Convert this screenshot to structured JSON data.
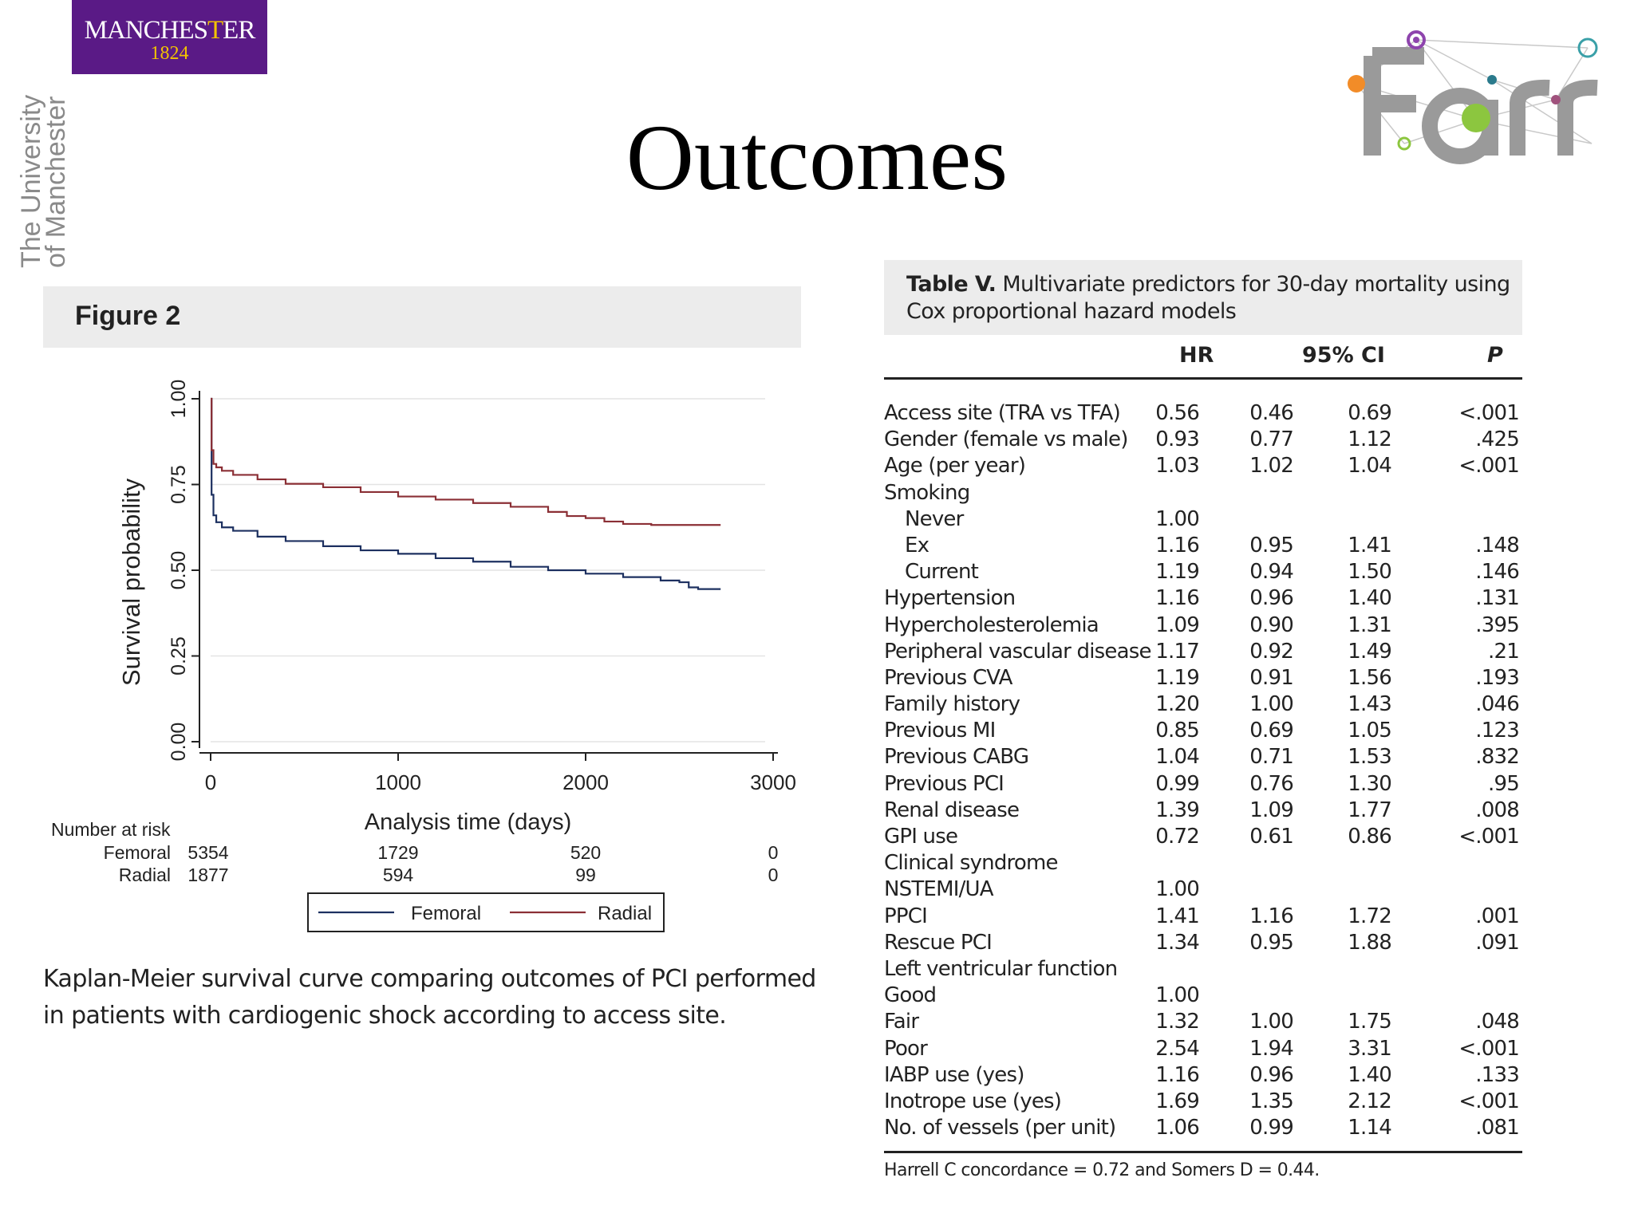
{
  "slide": {
    "title": "Outcomes"
  },
  "logos": {
    "uni_name_a": "MANCHES",
    "uni_name_b": "T",
    "uni_name_c": "ER",
    "uni_year": "1824",
    "uni_vertical_1": "The University",
    "uni_vertical_2": "of Manchester",
    "purple": "#5a1a86",
    "gold": "#f3c300",
    "farr_icon": "farr-institute-logo"
  },
  "figure": {
    "label": "Figure 2",
    "caption": "Kaplan-Meier survival curve comparing outcomes of PCI performed in patients with cardiogenic shock according to access site."
  },
  "chart_data": {
    "type": "line",
    "title": "",
    "xlabel": "Analysis time (days)",
    "ylabel": "Survival probability",
    "xlim": [
      0,
      3000
    ],
    "ylim": [
      0,
      1
    ],
    "x_ticks": [
      "0",
      "1000",
      "2000",
      "3000"
    ],
    "y_ticks": [
      "0.00",
      "0.25",
      "0.50",
      "0.75",
      "1.00"
    ],
    "grid": true,
    "legend": "bottom",
    "series": [
      {
        "name": "Femoral",
        "color": "#1d3060",
        "x": [
          0,
          5,
          15,
          30,
          60,
          120,
          250,
          400,
          600,
          800,
          1000,
          1200,
          1400,
          1600,
          1800,
          2000,
          2200,
          2400,
          2500,
          2550,
          2600,
          2720
        ],
        "y": [
          1.0,
          0.72,
          0.66,
          0.64,
          0.625,
          0.615,
          0.598,
          0.585,
          0.57,
          0.558,
          0.548,
          0.535,
          0.525,
          0.51,
          0.5,
          0.49,
          0.48,
          0.47,
          0.465,
          0.45,
          0.445,
          0.445
        ]
      },
      {
        "name": "Radial",
        "color": "#8b2f35",
        "x": [
          0,
          5,
          15,
          30,
          60,
          120,
          250,
          400,
          600,
          800,
          1000,
          1200,
          1400,
          1600,
          1800,
          1900,
          2000,
          2100,
          2200,
          2350,
          2500,
          2720
        ],
        "y": [
          1.0,
          0.85,
          0.81,
          0.8,
          0.79,
          0.778,
          0.765,
          0.752,
          0.742,
          0.728,
          0.715,
          0.706,
          0.696,
          0.685,
          0.67,
          0.658,
          0.652,
          0.642,
          0.635,
          0.632,
          0.632,
          0.632
        ]
      }
    ],
    "risk_table": {
      "title": "Number at risk",
      "times": [
        0,
        1000,
        2000,
        3000
      ],
      "rows": [
        {
          "label": "Femoral",
          "values": [
            "5354",
            "1729",
            "520",
            "0"
          ]
        },
        {
          "label": "Radial",
          "values": [
            "1877",
            "594",
            "99",
            "0"
          ]
        }
      ]
    }
  },
  "table": {
    "label": "Table V.",
    "title": "Multivariate predictors for 30-day mortality using Cox proportional hazard models",
    "headers": {
      "hr": "HR",
      "ci": "95% CI",
      "p": "P"
    },
    "rows": [
      {
        "label": "Access site (TRA vs TFA)",
        "indent": false,
        "hr": "0.56",
        "lo": "0.46",
        "hi": "0.69",
        "p": "<.001"
      },
      {
        "label": "Gender (female vs male)",
        "indent": false,
        "hr": "0.93",
        "lo": "0.77",
        "hi": "1.12",
        "p": ".425"
      },
      {
        "label": "Age (per year)",
        "indent": false,
        "hr": "1.03",
        "lo": "1.02",
        "hi": "1.04",
        "p": "<.001"
      },
      {
        "label": "Smoking",
        "indent": false,
        "hr": "",
        "lo": "",
        "hi": "",
        "p": ""
      },
      {
        "label": "Never",
        "indent": true,
        "hr": "1.00",
        "lo": "",
        "hi": "",
        "p": ""
      },
      {
        "label": "Ex",
        "indent": true,
        "hr": "1.16",
        "lo": "0.95",
        "hi": "1.41",
        "p": ".148"
      },
      {
        "label": "Current",
        "indent": true,
        "hr": "1.19",
        "lo": "0.94",
        "hi": "1.50",
        "p": ".146"
      },
      {
        "label": "Hypertension",
        "indent": false,
        "hr": "1.16",
        "lo": "0.96",
        "hi": "1.40",
        "p": ".131"
      },
      {
        "label": "Hypercholesterolemia",
        "indent": false,
        "hr": "1.09",
        "lo": "0.90",
        "hi": "1.31",
        "p": ".395"
      },
      {
        "label": "Peripheral vascular disease",
        "indent": false,
        "hr": "1.17",
        "lo": "0.92",
        "hi": "1.49",
        "p": ".21"
      },
      {
        "label": "Previous CVA",
        "indent": false,
        "hr": "1.19",
        "lo": "0.91",
        "hi": "1.56",
        "p": ".193"
      },
      {
        "label": "Family history",
        "indent": false,
        "hr": "1.20",
        "lo": "1.00",
        "hi": "1.43",
        "p": ".046"
      },
      {
        "label": "Previous MI",
        "indent": false,
        "hr": "0.85",
        "lo": "0.69",
        "hi": "1.05",
        "p": ".123"
      },
      {
        "label": "Previous CABG",
        "indent": false,
        "hr": "1.04",
        "lo": "0.71",
        "hi": "1.53",
        "p": ".832"
      },
      {
        "label": "Previous PCI",
        "indent": false,
        "hr": "0.99",
        "lo": "0.76",
        "hi": "1.30",
        "p": ".95"
      },
      {
        "label": "Renal disease",
        "indent": false,
        "hr": "1.39",
        "lo": "1.09",
        "hi": "1.77",
        "p": ".008"
      },
      {
        "label": "GPI use",
        "indent": false,
        "hr": "0.72",
        "lo": "0.61",
        "hi": "0.86",
        "p": "<.001"
      },
      {
        "label": "Clinical syndrome",
        "indent": false,
        "hr": "",
        "lo": "",
        "hi": "",
        "p": ""
      },
      {
        "label": "NSTEMI/UA",
        "indent": false,
        "hr": "1.00",
        "lo": "",
        "hi": "",
        "p": ""
      },
      {
        "label": "PPCI",
        "indent": false,
        "hr": "1.41",
        "lo": "1.16",
        "hi": "1.72",
        "p": ".001"
      },
      {
        "label": "Rescue PCI",
        "indent": false,
        "hr": "1.34",
        "lo": "0.95",
        "hi": "1.88",
        "p": ".091"
      },
      {
        "label": "Left ventricular function",
        "indent": false,
        "hr": "",
        "lo": "",
        "hi": "",
        "p": ""
      },
      {
        "label": "Good",
        "indent": false,
        "hr": "1.00",
        "lo": "",
        "hi": "",
        "p": ""
      },
      {
        "label": "Fair",
        "indent": false,
        "hr": "1.32",
        "lo": "1.00",
        "hi": "1.75",
        "p": ".048"
      },
      {
        "label": "Poor",
        "indent": false,
        "hr": "2.54",
        "lo": "1.94",
        "hi": "3.31",
        "p": "<.001"
      },
      {
        "label": "IABP use (yes)",
        "indent": false,
        "hr": "1.16",
        "lo": "0.96",
        "hi": "1.40",
        "p": ".133"
      },
      {
        "label": "Inotrope use (yes)",
        "indent": false,
        "hr": "1.69",
        "lo": "1.35",
        "hi": "2.12",
        "p": "<.001"
      },
      {
        "label": "No. of vessels (per unit)",
        "indent": false,
        "hr": "1.06",
        "lo": "0.99",
        "hi": "1.14",
        "p": ".081"
      }
    ],
    "footnote": "Harrell C concordance = 0.72 and Somers D = 0.44."
  }
}
